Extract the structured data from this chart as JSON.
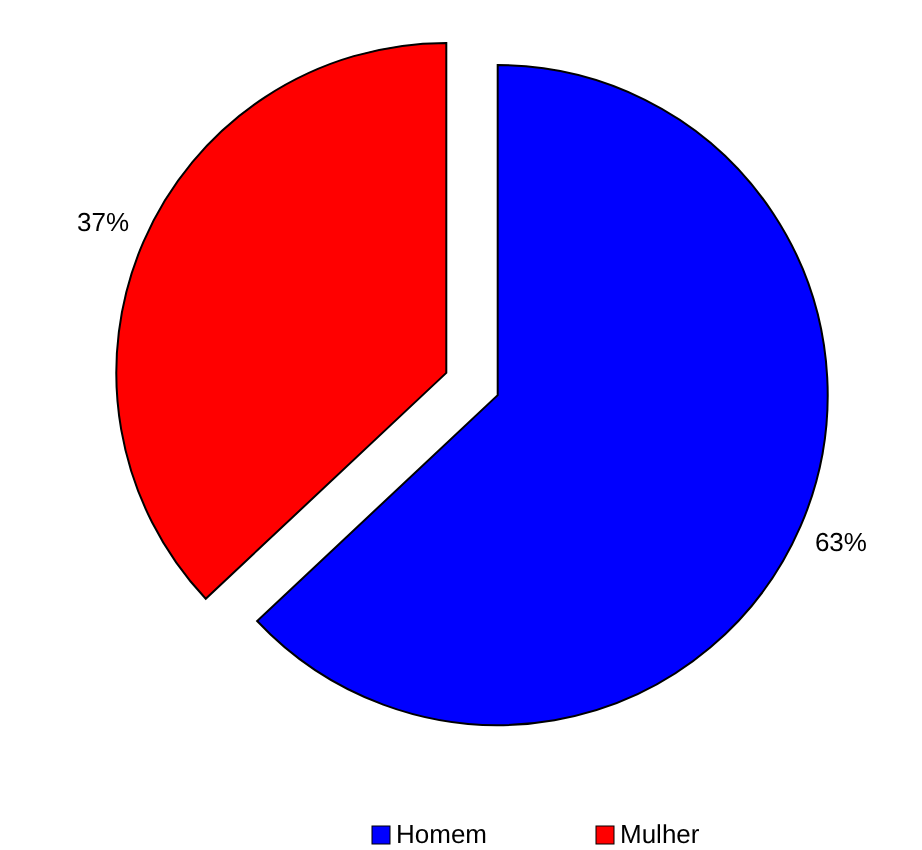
{
  "chart_data": {
    "type": "pie",
    "categories": [
      "Homem",
      "Mulher"
    ],
    "values": [
      63,
      37
    ],
    "colors": [
      "#0000ff",
      "#ff0000"
    ],
    "value_labels": [
      "63%",
      "37%"
    ],
    "legend": "bottom"
  }
}
